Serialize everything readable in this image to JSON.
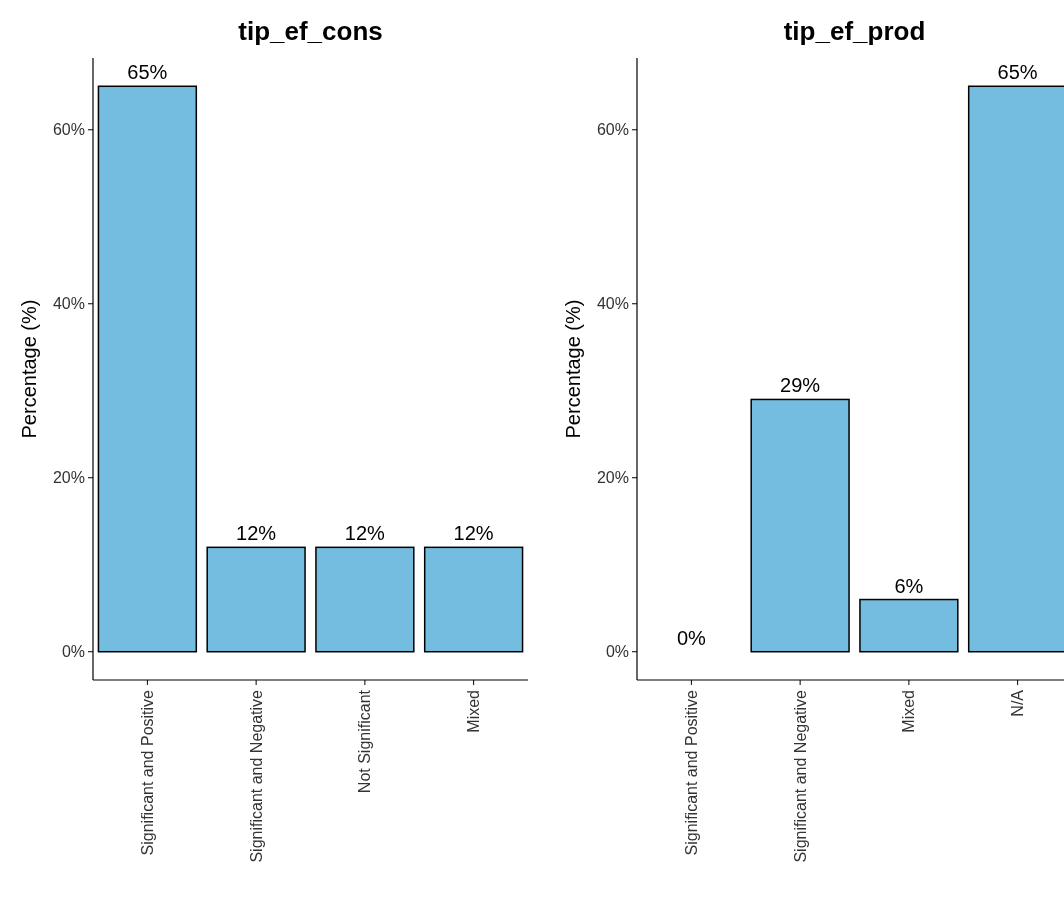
{
  "chart_data": [
    {
      "type": "bar",
      "title": "tip_ef_cons",
      "ylabel": "Percentage (%)",
      "categories": [
        "Significant and Positive",
        "Significant and Negative",
        "Not Significant",
        "Mixed"
      ],
      "values": [
        65,
        12,
        12,
        12
      ],
      "color": "#74bde0",
      "value_labels": [
        "65%",
        "12%",
        "12%",
        "12%"
      ],
      "ylim": [
        -3.25,
        68.25
      ],
      "yticks": [
        {
          "value": 0,
          "label": "0%"
        },
        {
          "value": 20,
          "label": "20%"
        },
        {
          "value": 40,
          "label": "40%"
        },
        {
          "value": 60,
          "label": "60%"
        }
      ],
      "grid": false
    },
    {
      "type": "bar",
      "title": "tip_ef_prod",
      "ylabel": "Percentage (%)",
      "categories": [
        "Significant and Positive",
        "Significant and Negative",
        "Mixed",
        "N/A"
      ],
      "values": [
        0,
        29,
        6,
        65
      ],
      "color": "#74bde0",
      "value_labels": [
        "0%",
        "29%",
        "6%",
        "65%"
      ],
      "ylim": [
        -3.25,
        68.25
      ],
      "yticks": [
        {
          "value": 0,
          "label": "0%"
        },
        {
          "value": 20,
          "label": "20%"
        },
        {
          "value": 40,
          "label": "40%"
        },
        {
          "value": 60,
          "label": "60%"
        }
      ],
      "grid": false
    }
  ]
}
